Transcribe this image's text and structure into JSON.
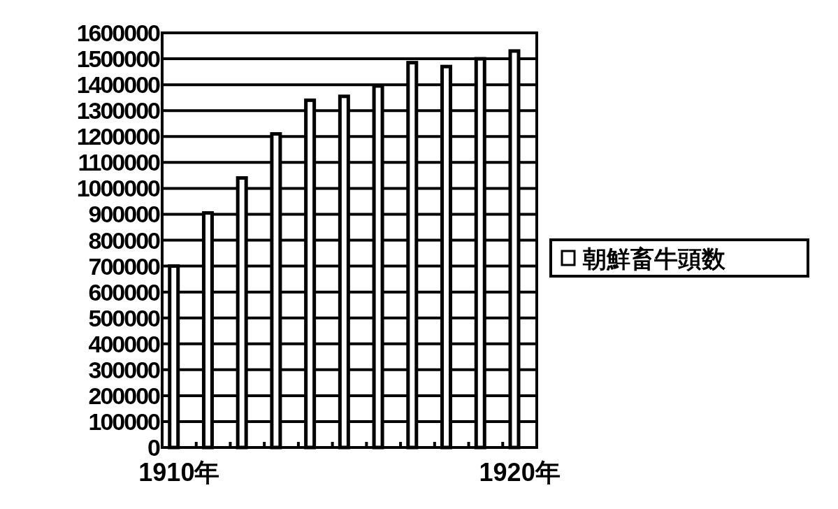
{
  "chart_data": {
    "type": "bar",
    "categories": [
      "1910年",
      null,
      null,
      null,
      null,
      null,
      null,
      null,
      null,
      null,
      "1920年"
    ],
    "series": [
      {
        "name": "朝鮮畜牛頭数",
        "color": "#ffffff",
        "values": [
          700000,
          905000,
          1040000,
          1210000,
          1340000,
          1355000,
          1395000,
          1485000,
          1470000,
          1500000,
          1530000
        ]
      }
    ],
    "ylim": [
      0,
      1600000
    ],
    "yticks": [
      0,
      100000,
      200000,
      300000,
      400000,
      500000,
      600000,
      700000,
      800000,
      900000,
      1000000,
      1100000,
      1200000,
      1300000,
      1400000,
      1500000,
      1600000
    ],
    "grid": "y",
    "legend": "right"
  }
}
